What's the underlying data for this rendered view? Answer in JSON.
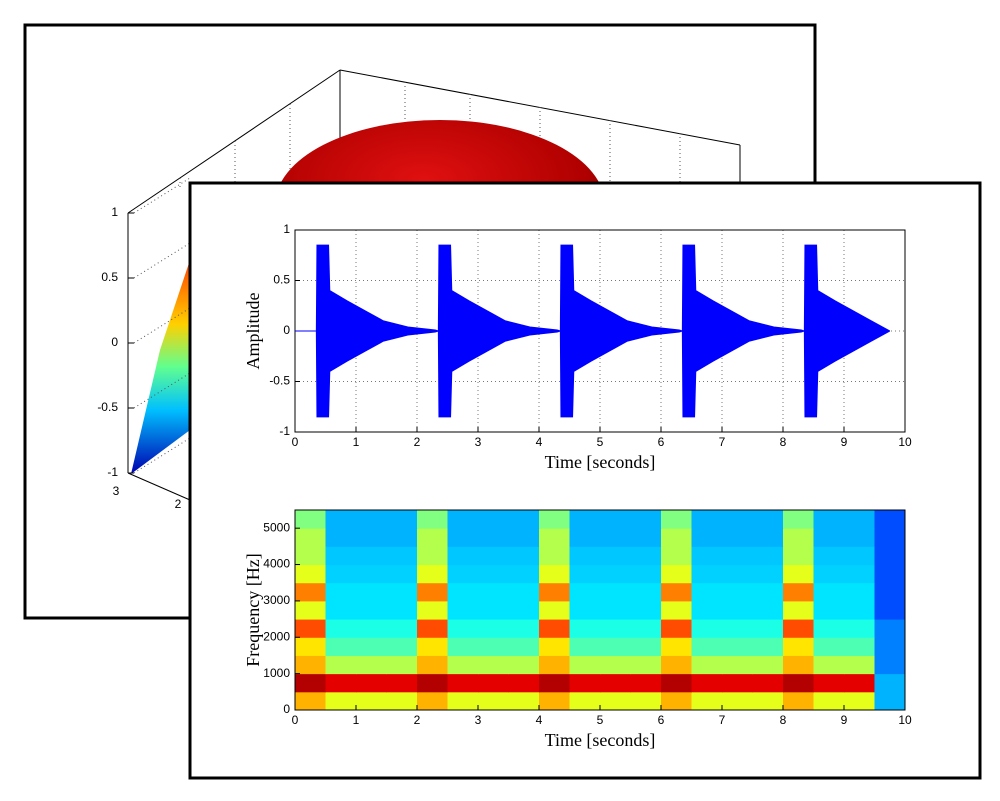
{
  "chart_data": [
    {
      "type": "surface",
      "zlim": [
        -1,
        1
      ],
      "zticks": [
        -1,
        -0.5,
        0,
        0.5,
        1
      ],
      "xticks": [
        3,
        2
      ],
      "grid": true
    },
    {
      "type": "line",
      "xlabel": "Time [seconds]",
      "ylabel": "Amplitude",
      "xlim": [
        0,
        10
      ],
      "ylim": [
        -1,
        1
      ],
      "xticks": [
        0,
        1,
        2,
        3,
        4,
        5,
        6,
        7,
        8,
        9,
        10
      ],
      "yticks": [
        -1,
        -0.5,
        0,
        0.5,
        1
      ],
      "grid": true,
      "x": [
        0,
        0.35,
        0.36,
        0.55,
        0.57,
        0.85,
        1.15,
        1.45,
        1.85,
        2.3,
        2.35,
        2.36,
        2.55,
        2.57,
        2.85,
        3.15,
        3.45,
        3.85,
        4.3,
        4.35,
        4.36,
        4.55,
        4.57,
        4.85,
        5.15,
        5.45,
        5.85,
        6.3,
        6.35,
        6.36,
        6.55,
        6.57,
        6.85,
        7.15,
        7.45,
        7.85,
        8.3,
        8.35,
        8.36,
        8.55,
        8.57,
        8.85,
        9.15,
        9.45,
        9.75
      ],
      "series": [
        {
          "color": "#0000ff",
          "values": [
            0,
            0,
            0.85,
            0.85,
            0.4,
            0.3,
            0.2,
            0.1,
            0.04,
            0.01,
            0,
            0.85,
            0.85,
            0.4,
            0.3,
            0.2,
            0.1,
            0.04,
            0.01,
            0,
            0.85,
            0.85,
            0.4,
            0.3,
            0.2,
            0.1,
            0.04,
            0.01,
            0,
            0.85,
            0.85,
            0.4,
            0.3,
            0.2,
            0.1,
            0.04,
            0.01,
            0,
            0.85,
            0.85,
            0.4,
            0.3,
            0.2,
            0.1,
            0
          ]
        },
        {
          "color": "#0000ff",
          "values": [
            0,
            0,
            -0.85,
            -0.85,
            -0.4,
            -0.3,
            -0.2,
            -0.1,
            -0.04,
            -0.01,
            0,
            -0.85,
            -0.85,
            -0.4,
            -0.3,
            -0.2,
            -0.1,
            -0.04,
            -0.01,
            0,
            -0.85,
            -0.85,
            -0.4,
            -0.3,
            -0.2,
            -0.1,
            -0.04,
            -0.01,
            0,
            -0.85,
            -0.85,
            -0.4,
            -0.3,
            -0.2,
            -0.1,
            -0.04,
            -0.01,
            0,
            -0.85,
            -0.85,
            -0.4,
            -0.3,
            -0.2,
            -0.1,
            0
          ]
        }
      ]
    },
    {
      "type": "heatmap",
      "xlabel": "Time [seconds]",
      "ylabel": "Frequency [Hz]",
      "xlim": [
        0,
        10
      ],
      "ylim": [
        0,
        5500
      ],
      "xticks": [
        0,
        1,
        2,
        3,
        4,
        5,
        6,
        7,
        8,
        9,
        10
      ],
      "yticks": [
        0,
        1000,
        2000,
        3000,
        4000,
        5000
      ],
      "xbins": [
        0,
        0.5,
        1,
        1.5,
        2,
        2.5,
        3,
        3.5,
        4,
        4.5,
        5,
        5.5,
        6,
        6.5,
        7,
        7.5,
        8,
        8.5,
        9,
        9.5,
        10
      ],
      "ybins": [
        0,
        500,
        1000,
        1500,
        2000,
        2500,
        3000,
        3500,
        4000,
        4500,
        5000,
        5500
      ],
      "z": [
        [
          0.7,
          0.6,
          0.6,
          0.6,
          0.7,
          0.6,
          0.6,
          0.6,
          0.7,
          0.6,
          0.6,
          0.6,
          0.7,
          0.6,
          0.6,
          0.6,
          0.7,
          0.6,
          0.6,
          0.3
        ],
        [
          0.95,
          0.9,
          0.9,
          0.9,
          0.95,
          0.9,
          0.9,
          0.9,
          0.95,
          0.9,
          0.9,
          0.9,
          0.95,
          0.9,
          0.9,
          0.9,
          0.95,
          0.9,
          0.9,
          0.3
        ],
        [
          0.7,
          0.55,
          0.55,
          0.55,
          0.7,
          0.55,
          0.55,
          0.55,
          0.7,
          0.55,
          0.55,
          0.55,
          0.7,
          0.55,
          0.55,
          0.55,
          0.7,
          0.55,
          0.55,
          0.25
        ],
        [
          0.65,
          0.45,
          0.45,
          0.45,
          0.65,
          0.45,
          0.45,
          0.45,
          0.65,
          0.45,
          0.45,
          0.45,
          0.65,
          0.45,
          0.45,
          0.45,
          0.65,
          0.45,
          0.45,
          0.25
        ],
        [
          0.8,
          0.4,
          0.4,
          0.4,
          0.8,
          0.4,
          0.4,
          0.4,
          0.8,
          0.4,
          0.4,
          0.4,
          0.8,
          0.4,
          0.4,
          0.4,
          0.8,
          0.4,
          0.4,
          0.25
        ],
        [
          0.6,
          0.35,
          0.35,
          0.35,
          0.6,
          0.35,
          0.35,
          0.35,
          0.6,
          0.35,
          0.35,
          0.35,
          0.6,
          0.35,
          0.35,
          0.35,
          0.6,
          0.35,
          0.35,
          0.2
        ],
        [
          0.75,
          0.35,
          0.35,
          0.35,
          0.75,
          0.35,
          0.35,
          0.35,
          0.75,
          0.35,
          0.35,
          0.35,
          0.75,
          0.35,
          0.35,
          0.35,
          0.75,
          0.35,
          0.35,
          0.2
        ],
        [
          0.6,
          0.33,
          0.33,
          0.33,
          0.6,
          0.33,
          0.33,
          0.33,
          0.6,
          0.33,
          0.33,
          0.33,
          0.6,
          0.33,
          0.33,
          0.33,
          0.6,
          0.33,
          0.33,
          0.2
        ],
        [
          0.55,
          0.32,
          0.32,
          0.32,
          0.55,
          0.32,
          0.32,
          0.32,
          0.55,
          0.32,
          0.32,
          0.32,
          0.55,
          0.32,
          0.32,
          0.32,
          0.55,
          0.32,
          0.32,
          0.2
        ],
        [
          0.55,
          0.3,
          0.3,
          0.3,
          0.55,
          0.3,
          0.3,
          0.3,
          0.55,
          0.3,
          0.3,
          0.3,
          0.55,
          0.3,
          0.3,
          0.3,
          0.55,
          0.3,
          0.3,
          0.2
        ],
        [
          0.5,
          0.3,
          0.3,
          0.3,
          0.5,
          0.3,
          0.3,
          0.3,
          0.5,
          0.3,
          0.3,
          0.3,
          0.5,
          0.3,
          0.3,
          0.3,
          0.5,
          0.3,
          0.3,
          0.2
        ]
      ]
    }
  ]
}
